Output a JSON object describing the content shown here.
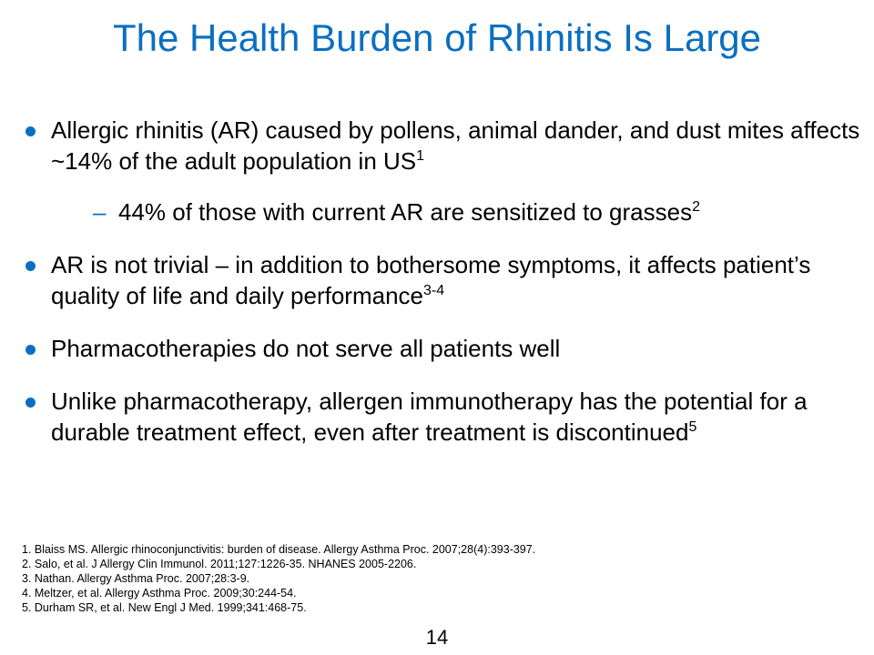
{
  "title": "The Health Burden of Rhinitis Is Large",
  "bullets": [
    {
      "text": "Allergic rhinitis (AR) caused by pollens, animal dander, and dust mites affects ~14% of the adult population in US",
      "sup": "1"
    },
    {
      "text": "44% of those with current AR are sensitized to grasses",
      "sup": "2"
    },
    {
      "text": "AR is not trivial – in addition to bothersome symptoms, it affects patient’s quality of life and daily performance",
      "sup": "3-4"
    },
    {
      "text": "Pharmacotherapies do not serve all patients well",
      "sup": ""
    },
    {
      "text": "Unlike pharmacotherapy, allergen immunotherapy has the potential for a durable treatment effect, even after treatment is discontinued",
      "sup": "5"
    }
  ],
  "sub_marker": "–",
  "references": [
    "1. Blaiss MS. Allergic rhinoconjunctivitis: burden of disease. Allergy Asthma Proc. 2007;28(4):393-397.",
    "2. Salo, et al. J Allergy Clin Immunol. 2011;127:1226-35. NHANES 2005-2206.",
    "3. Nathan. Allergy Asthma Proc. 2007;28:3-9.",
    "4. Meltzer, et al. Allergy Asthma Proc. 2009;30:244-54.",
    "5. Durham SR, et al. New Engl J Med. 1999;341:468-75."
  ],
  "page_number": "14",
  "colors": {
    "accent": "#0a6fc2",
    "text": "#000000",
    "background": "#ffffff"
  }
}
